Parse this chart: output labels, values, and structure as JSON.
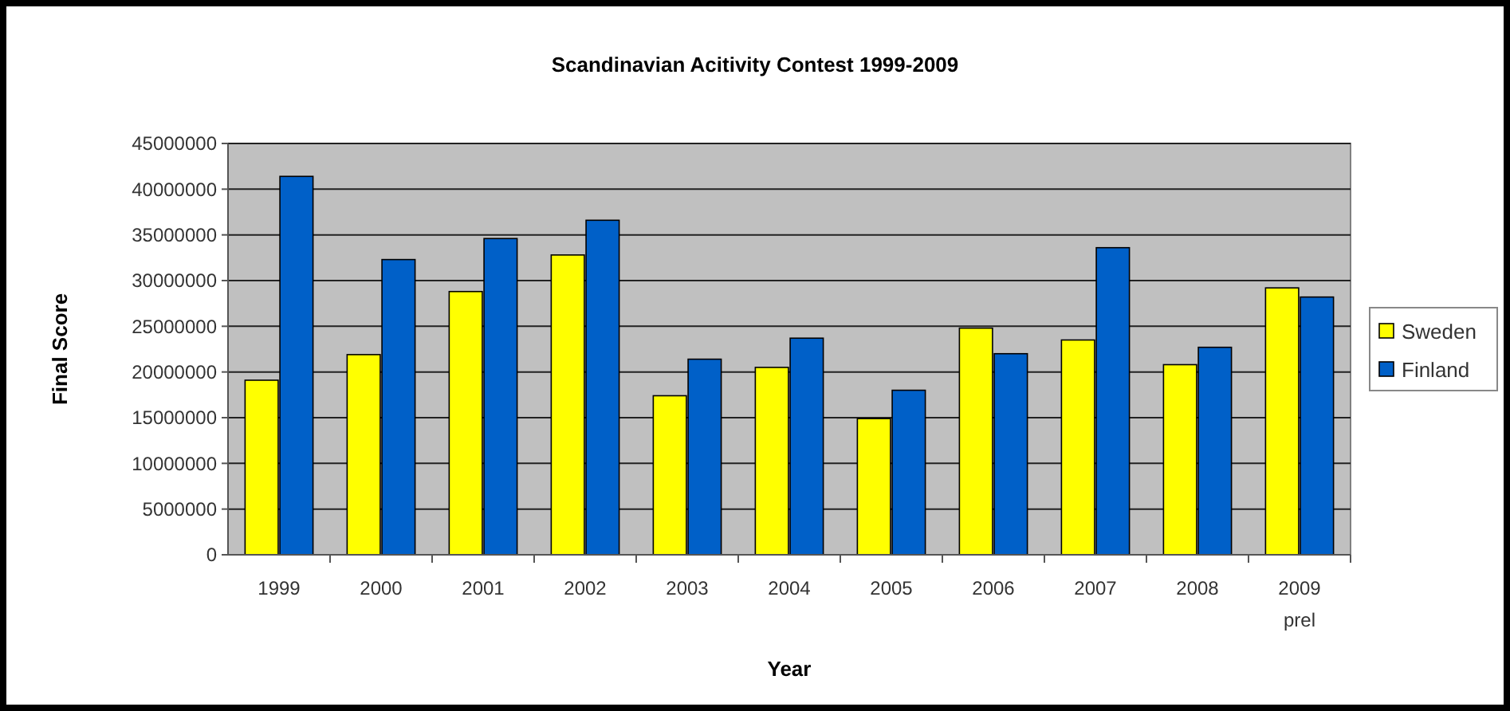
{
  "chart_data": {
    "type": "bar",
    "title": "Scandinavian Acitivity Contest 1999-2009",
    "xlabel": "Year",
    "ylabel": "Final Score",
    "categories": [
      "1999",
      "2000",
      "2001",
      "2002",
      "2003",
      "2004",
      "2005",
      "2006",
      "2007",
      "2008",
      "2009\nprel"
    ],
    "series": [
      {
        "name": "Sweden",
        "color": "#ffff00",
        "values": [
          19100000,
          21900000,
          28800000,
          32800000,
          17400000,
          20500000,
          14900000,
          24800000,
          23500000,
          20800000,
          29200000
        ]
      },
      {
        "name": "Finland",
        "color": "#0060c8",
        "values": [
          41400000,
          32300000,
          34600000,
          36600000,
          21400000,
          23700000,
          18000000,
          22000000,
          33600000,
          22700000,
          28200000
        ]
      }
    ],
    "ylim": [
      0,
      45000000
    ],
    "yticks": [
      0,
      5000000,
      10000000,
      15000000,
      20000000,
      25000000,
      30000000,
      35000000,
      40000000,
      45000000
    ],
    "grid": "y",
    "legend": "right"
  }
}
